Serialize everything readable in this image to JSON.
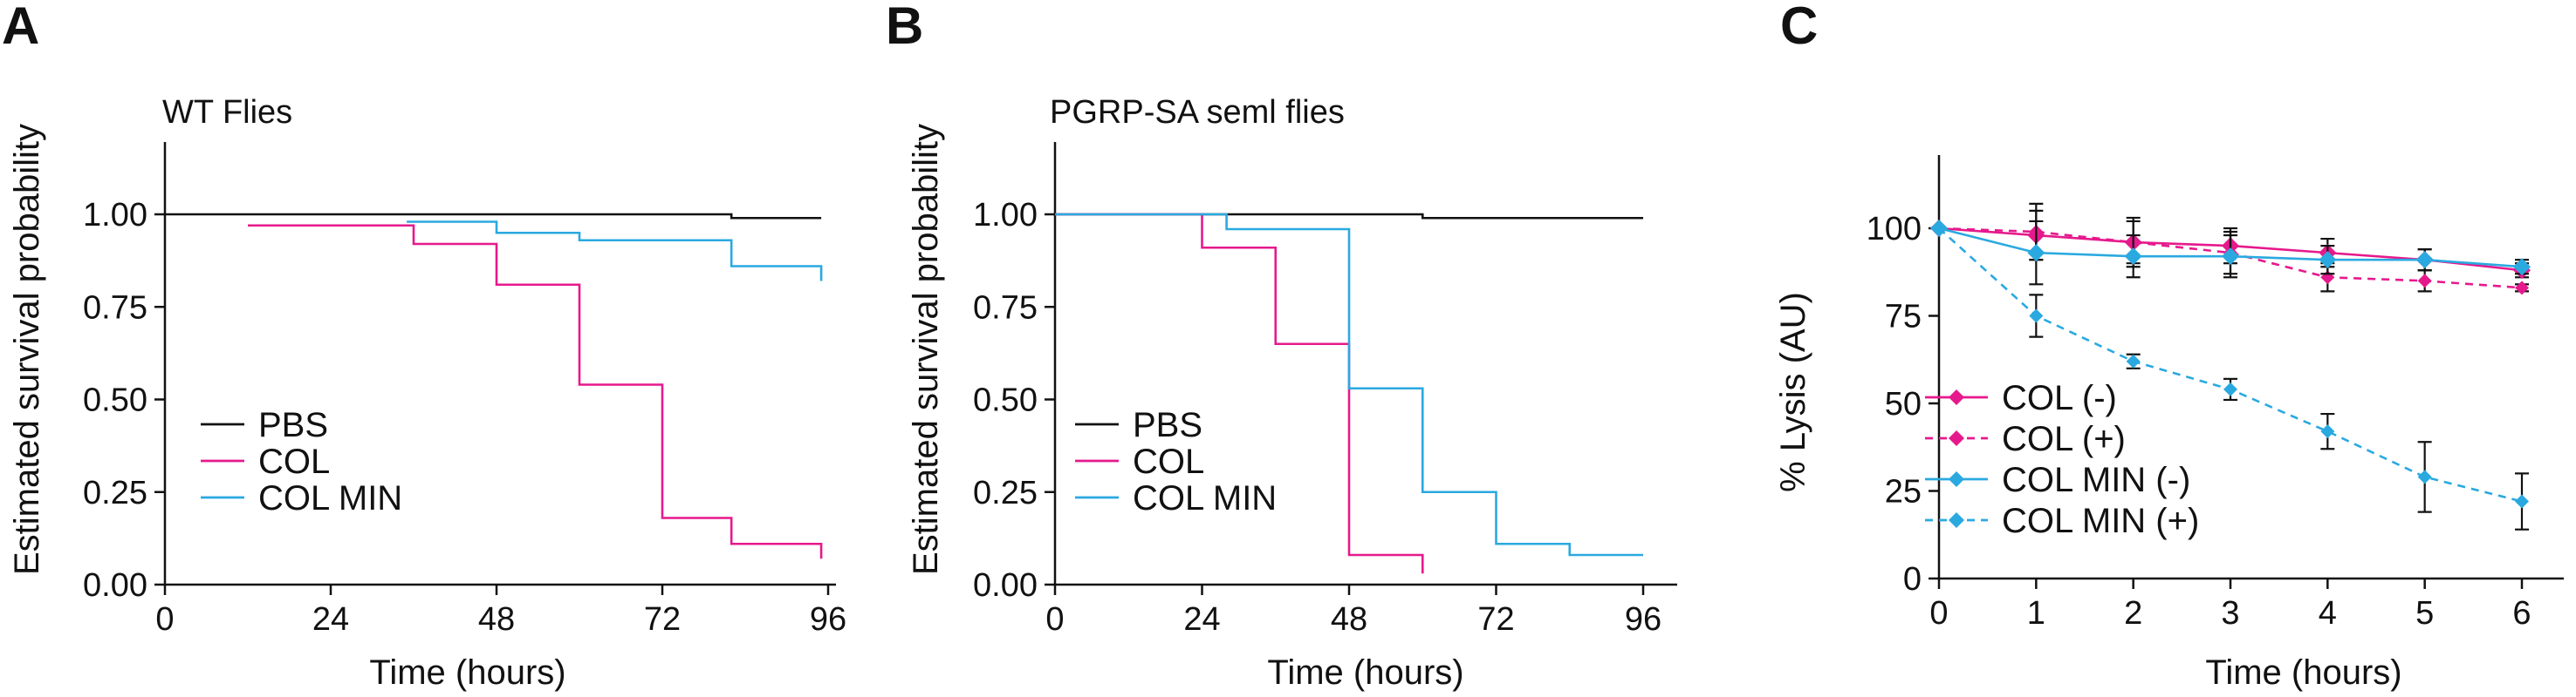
{
  "figure": {
    "colors": {
      "black": "#111111",
      "magenta": "#e6198c",
      "cyan": "#2aa9e0"
    }
  },
  "chart_data": [
    {
      "panel": "A",
      "type": "line",
      "style": "step",
      "title": "WT Flies",
      "xlabel": "Time (hours)",
      "ylabel": "Estimated survival probability",
      "xlim": [
        0,
        100
      ],
      "ylim": [
        0,
        1.2
      ],
      "xticks": [
        0,
        24,
        48,
        72,
        96
      ],
      "yticks": [
        0.0,
        0.25,
        0.5,
        0.75,
        1.0
      ],
      "ytick_labels": [
        "0.00",
        "0.25",
        "0.50",
        "0.75",
        "1.00"
      ],
      "legend": {
        "position": "lower-left"
      },
      "series": [
        {
          "name": "PBS",
          "color": "#111111",
          "x": [
            0,
            82,
            95
          ],
          "y": [
            1.0,
            0.99,
            0.99
          ]
        },
        {
          "name": "COL",
          "color": "#e6198c",
          "x": [
            12,
            36,
            48,
            60,
            72,
            82,
            95
          ],
          "y": [
            0.97,
            0.92,
            0.81,
            0.54,
            0.18,
            0.11,
            0.07
          ]
        },
        {
          "name": "COL MIN",
          "color": "#2aa9e0",
          "x": [
            35,
            48,
            60,
            82,
            95
          ],
          "y": [
            0.98,
            0.95,
            0.93,
            0.86,
            0.82
          ]
        }
      ]
    },
    {
      "panel": "B",
      "type": "line",
      "style": "step",
      "title": "PGRP-SA seml flies",
      "xlabel": "Time (hours)",
      "ylabel": "Estimated survival probability",
      "xlim": [
        0,
        100
      ],
      "ylim": [
        0,
        1.2
      ],
      "xticks": [
        0,
        24,
        48,
        72,
        96
      ],
      "yticks": [
        0.0,
        0.25,
        0.5,
        0.75,
        1.0
      ],
      "ytick_labels": [
        "0.00",
        "0.25",
        "0.50",
        "0.75",
        "1.00"
      ],
      "legend": {
        "position": "lower-left"
      },
      "series": [
        {
          "name": "PBS",
          "color": "#111111",
          "x": [
            0,
            60,
            96
          ],
          "y": [
            1.0,
            0.99,
            0.99
          ]
        },
        {
          "name": "COL",
          "color": "#e6198c",
          "x": [
            0,
            24,
            36,
            48,
            60
          ],
          "y": [
            1.0,
            0.91,
            0.65,
            0.08,
            0.03
          ]
        },
        {
          "name": "COL MIN",
          "color": "#2aa9e0",
          "x": [
            0,
            28,
            48,
            60,
            72,
            84,
            96
          ],
          "y": [
            1.0,
            0.96,
            0.53,
            0.25,
            0.11,
            0.08,
            0.08
          ]
        }
      ]
    },
    {
      "panel": "C",
      "type": "line",
      "title": "",
      "xlabel": "Time (hours)",
      "ylabel": "% Lysis (AU)",
      "xlim": [
        0,
        6.4
      ],
      "ylim": [
        0,
        115
      ],
      "xticks": [
        0,
        1,
        2,
        3,
        4,
        5,
        6
      ],
      "yticks": [
        0,
        25,
        50,
        75,
        100
      ],
      "legend": {
        "position": "lower-left"
      },
      "x": [
        0,
        1,
        2,
        3,
        4,
        5,
        6
      ],
      "series": [
        {
          "name": "COL (-)",
          "color": "#e6198c",
          "dashed": false,
          "marker": "diamond",
          "y": [
            100,
            98,
            96,
            95,
            93,
            91,
            88
          ],
          "err": [
            0,
            7,
            6,
            5,
            4,
            3,
            2
          ]
        },
        {
          "name": "COL (+)",
          "color": "#e6198c",
          "dashed": true,
          "marker": "diamond",
          "y": [
            100,
            99,
            96,
            93,
            86,
            85,
            83
          ],
          "err": [
            0,
            8,
            7,
            6,
            4,
            3,
            1
          ]
        },
        {
          "name": "COL MIN (-)",
          "color": "#2aa9e0",
          "dashed": false,
          "marker": "diamond",
          "y": [
            100,
            93,
            92,
            92,
            91,
            91,
            89
          ],
          "err": [
            0,
            9,
            6,
            6,
            4,
            3,
            2
          ]
        },
        {
          "name": "COL MIN (+)",
          "color": "#2aa9e0",
          "dashed": true,
          "marker": "diamond",
          "y": [
            100,
            75,
            62,
            54,
            42,
            29,
            22
          ],
          "err": [
            0,
            6,
            2,
            3,
            5,
            10,
            8
          ]
        }
      ]
    }
  ]
}
